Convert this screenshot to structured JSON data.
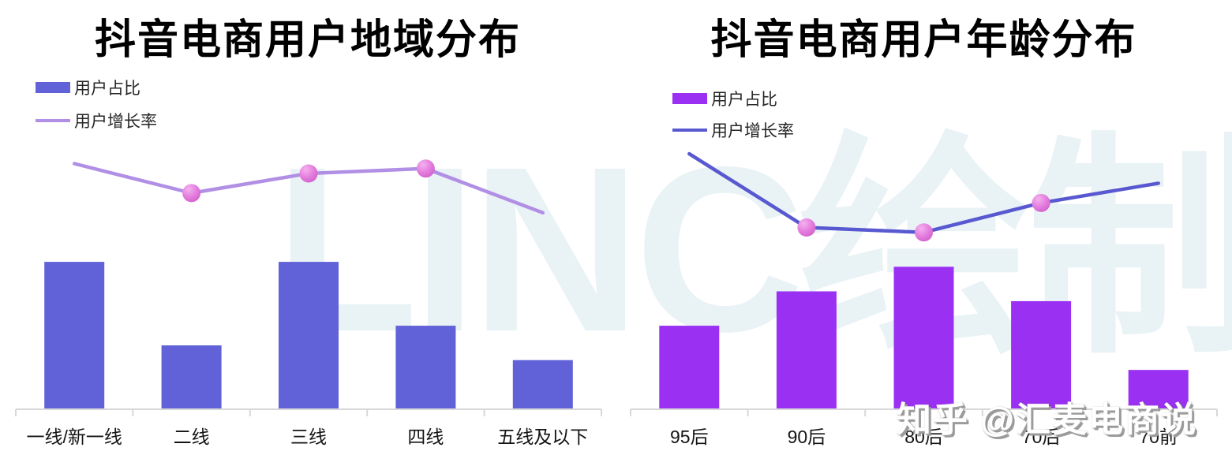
{
  "watermarks": {
    "center_text": "LINC绘制",
    "center_color": "#e9f2f5",
    "bottom_right_text": "知乎 @汇麦电商说"
  },
  "chart_data": [
    {
      "type": "combo",
      "title": "抖音电商用户地域分布",
      "categories": [
        "一线/新一线",
        "二线",
        "三线",
        "四线",
        "五线及以下"
      ],
      "series": [
        {
          "name": "用户占比",
          "type": "bar",
          "color": "#6161d8",
          "values": [
            30,
            13,
            30,
            17,
            10
          ]
        },
        {
          "name": "用户增长率",
          "type": "line",
          "color": "#b18fe4",
          "marker_color": "#e47ede",
          "marker_indices": [
            1,
            2,
            3
          ],
          "values": [
            50,
            44,
            48,
            49,
            40
          ]
        }
      ],
      "unit": "%",
      "ylim": [
        0,
        60
      ],
      "grid": false,
      "y_axis_visible": false,
      "legend_position": "top-left"
    },
    {
      "type": "combo",
      "title": "抖音电商用户年龄分布",
      "categories": [
        "95后",
        "90后",
        "80后",
        "70后",
        "70前"
      ],
      "series": [
        {
          "name": "用户占比",
          "type": "bar",
          "color": "#9a31f2",
          "values": [
            17,
            24,
            29,
            22,
            8
          ]
        },
        {
          "name": "用户增长率",
          "type": "line",
          "color": "#5858d0",
          "marker_color": "#e47ede",
          "marker_indices": [
            1,
            2,
            3
          ],
          "values": [
            52,
            37,
            36,
            42,
            46
          ]
        }
      ],
      "unit": "%",
      "ylim": [
        0,
        60
      ],
      "grid": false,
      "y_axis_visible": false,
      "legend_position": "top-left"
    }
  ]
}
